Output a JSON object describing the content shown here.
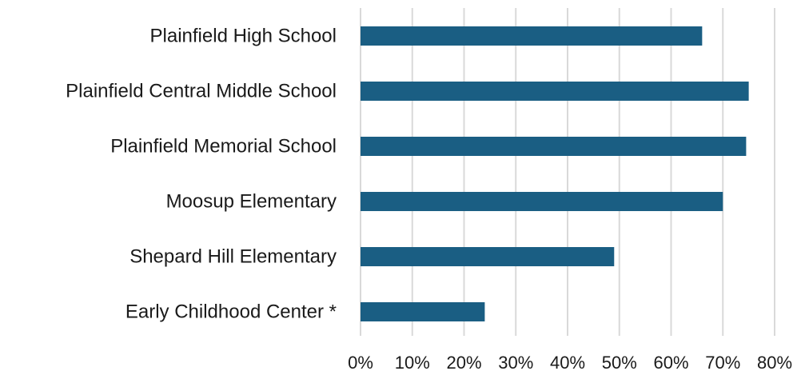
{
  "chart_data": {
    "type": "bar",
    "orientation": "horizontal",
    "title": "",
    "xlabel": "",
    "ylabel": "",
    "categories": [
      "Plainfield High School",
      "Plainfield Central Middle School",
      "Plainfield Memorial School",
      "Moosup Elementary",
      "Shepard Hill Elementary",
      "Early Childhood Center  *"
    ],
    "values": [
      0.66,
      0.75,
      0.745,
      0.7,
      0.49,
      0.24
    ],
    "xlim": [
      0,
      0.8
    ],
    "x_ticks": [
      "0%",
      "10%",
      "20%",
      "30%",
      "40%",
      "50%",
      "60%",
      "70%",
      "80%"
    ],
    "grid": "vertical",
    "legend": "none",
    "bar_color": "#1a5e83",
    "grid_color": "#d9d9d9"
  }
}
